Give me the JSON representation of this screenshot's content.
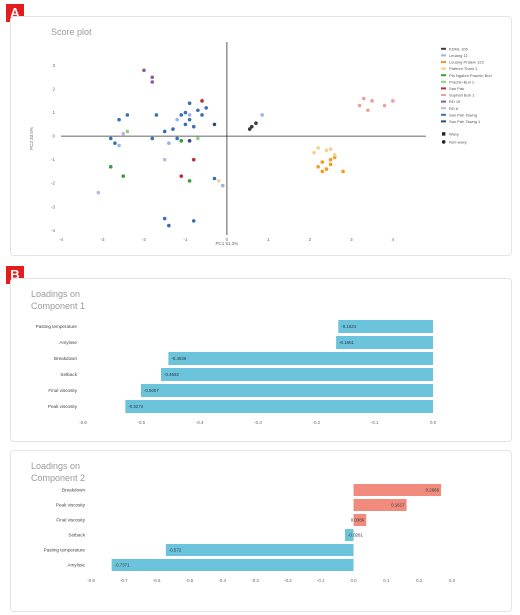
{
  "panels": {
    "a_label": "A",
    "b_label": "B"
  },
  "chart_data": [
    {
      "type": "scatter",
      "title": "Score plot",
      "xlabel": "PC1 51.3%",
      "ylabel": "PC2 33.5%",
      "xlim": [
        -4,
        4.8
      ],
      "ylim": [
        -4.2,
        4
      ],
      "xticks": [
        -4,
        -3,
        -2,
        -1,
        0,
        1,
        2,
        3,
        4
      ],
      "yticks": [
        -4,
        -3,
        -2,
        -1,
        0,
        1,
        2,
        3
      ],
      "grid": false,
      "legend_position": "right",
      "shape_legend": [
        {
          "label": "Waxy",
          "shape": "square"
        },
        {
          "label": "Non-waxy",
          "shape": "circle"
        }
      ],
      "series": [
        {
          "name": "KDML 105",
          "color": "#3b3b3b",
          "shape": "circle",
          "points": [
            [
              0.6,
              0.4
            ],
            [
              0.55,
              0.3
            ],
            [
              0.7,
              0.55
            ]
          ]
        },
        {
          "name": "Leuang 11",
          "color": "#9ab4e6",
          "shape": "circle",
          "points": [
            [
              -1.2,
              0.7
            ],
            [
              -0.9,
              0.9
            ],
            [
              -1.4,
              -0.3
            ],
            [
              -2.6,
              -0.4
            ],
            [
              0.85,
              0.9
            ],
            [
              -0.1,
              -2.1
            ]
          ]
        },
        {
          "name": "Leuang Pratew 123",
          "color": "#f39a1f",
          "shape": "circle",
          "points": [
            [
              2.3,
              -1.1
            ],
            [
              2.5,
              -1.2
            ],
            [
              2.4,
              -1.4
            ],
            [
              2.6,
              -0.9
            ],
            [
              2.2,
              -1.3
            ],
            [
              2.8,
              -1.5
            ],
            [
              2.3,
              -1.5
            ],
            [
              2.5,
              -1.0
            ]
          ]
        },
        {
          "name": "Pathum Thani 1",
          "color": "#f6cf8a",
          "shape": "circle",
          "points": [
            [
              2.1,
              -0.7
            ],
            [
              2.4,
              -0.6
            ],
            [
              2.6,
              -0.8
            ],
            [
              2.2,
              -0.5
            ],
            [
              2.5,
              -0.55
            ],
            [
              -0.2,
              -1.9
            ]
          ]
        },
        {
          "name": "Pla Ngahm Prachin Buri",
          "color": "#2c9e3a",
          "shape": "circle",
          "points": [
            [
              -0.9,
              -1.9
            ],
            [
              -2.8,
              -1.3
            ],
            [
              -2.5,
              -1.7
            ],
            [
              -1.1,
              -0.2
            ]
          ]
        },
        {
          "name": "Prachin Buri 1",
          "color": "#8fd27e",
          "shape": "circle",
          "points": [
            [
              -0.7,
              -0.1
            ],
            [
              -2.4,
              0.2
            ]
          ]
        },
        {
          "name": "San Pak",
          "color": "#c0293b",
          "shape": "circle",
          "points": [
            [
              -1.1,
              -1.7
            ],
            [
              -0.6,
              1.5
            ],
            [
              -0.8,
              -1.0
            ]
          ]
        },
        {
          "name": "Suphan Buri 1",
          "color": "#e9a29a",
          "shape": "circle",
          "points": [
            [
              3.4,
              1.1
            ],
            [
              3.2,
              1.3
            ],
            [
              3.5,
              1.5
            ],
            [
              3.8,
              1.3
            ],
            [
              3.3,
              1.6
            ],
            [
              4.0,
              1.5
            ]
          ]
        },
        {
          "name": "RD 15",
          "color": "#8e5aa8",
          "shape": "circle",
          "points": [
            [
              -2.0,
              2.8
            ],
            [
              -1.8,
              2.5
            ],
            [
              -1.8,
              2.3
            ]
          ]
        },
        {
          "name": "RD 6",
          "color": "#c5b2dd",
          "shape": "circle",
          "points": [
            [
              -2.5,
              0.1
            ],
            [
              -1.5,
              -1.0
            ],
            [
              -3.1,
              -2.4
            ]
          ]
        },
        {
          "name": "San Pah Tawng",
          "color": "#3a6fb5",
          "shape": "circle",
          "points": [
            [
              -1.3,
              0.3
            ],
            [
              -1.1,
              0.9
            ],
            [
              -0.9,
              1.4
            ],
            [
              -0.8,
              0.4
            ],
            [
              -0.6,
              0.9
            ],
            [
              -0.5,
              1.2
            ],
            [
              -1.0,
              1.0
            ],
            [
              -1.5,
              0.2
            ],
            [
              -1.2,
              -0.1
            ],
            [
              -1.0,
              0.5
            ],
            [
              -0.7,
              1.1
            ],
            [
              -2.6,
              0.7
            ],
            [
              -2.4,
              0.9
            ],
            [
              -2.7,
              -0.3
            ],
            [
              -1.8,
              -0.1
            ],
            [
              -0.8,
              -3.6
            ],
            [
              -1.5,
              -3.5
            ],
            [
              -1.4,
              -3.8
            ],
            [
              -0.3,
              -1.8
            ],
            [
              -1.7,
              0.9
            ],
            [
              -2.8,
              -0.1
            ],
            [
              -0.9,
              0.7
            ]
          ]
        },
        {
          "name": "San Pah Tawng 1",
          "color": "#2e4a7a",
          "shape": "circle",
          "points": [
            [
              -0.9,
              -0.2
            ],
            [
              -0.3,
              0.5
            ]
          ]
        }
      ]
    },
    {
      "type": "bar",
      "orientation": "horizontal",
      "title": "Loadings on\nComponent 1",
      "categories": [
        "Pasting temperature",
        "Amylose",
        "Breakdown",
        "Setback",
        "Final viscosity",
        "Peak viscosity"
      ],
      "values": [
        -0.1624,
        -0.1661,
        -0.4536,
        -0.4663,
        -0.5007,
        -0.5274
      ],
      "value_labels": [
        "-0.1624",
        "-0.1661",
        "-0.4536",
        "-0.4663",
        "-0.5007",
        "-0.5274"
      ],
      "xlim": [
        -0.6,
        0.0
      ],
      "xticks": [
        -0.6,
        -0.5,
        -0.4,
        -0.3,
        -0.2,
        -0.1,
        0.0
      ],
      "xtick_labels": [
        "-0.6",
        "-0.5",
        "-0.4",
        "-0.3",
        "-0.2",
        "-0.1",
        "0.0"
      ],
      "colors": {
        "negative": "#6cc4dc",
        "positive": "#f08b7d"
      }
    },
    {
      "type": "bar",
      "orientation": "horizontal",
      "title": "Loadings on\nComponent 2",
      "categories": [
        "Breakdown",
        "Peak viscosity",
        "Final viscosity",
        "Setback",
        "Pasting temperature",
        "Amylose"
      ],
      "values": [
        0.2666,
        0.1617,
        0.0386,
        -0.0261,
        -0.572,
        -0.7371
      ],
      "value_labels": [
        "0.2666",
        "0.1617",
        "0.0386",
        "-0.0261",
        "-0.572",
        "-0.7371"
      ],
      "xlim": [
        -0.8,
        0.3
      ],
      "xticks": [
        -0.8,
        -0.7,
        -0.6,
        -0.5,
        -0.4,
        -0.3,
        -0.2,
        -0.1,
        0.0,
        0.1,
        0.2,
        0.3
      ],
      "xtick_labels": [
        "-0.8",
        "-0.7",
        "-0.6",
        "-0.5",
        "-0.4",
        "-0.3",
        "-0.2",
        "-0.1",
        "0.0",
        "0.1",
        "0.2",
        "0.3"
      ],
      "colors": {
        "negative": "#6cc4dc",
        "positive": "#f08b7d"
      }
    }
  ]
}
